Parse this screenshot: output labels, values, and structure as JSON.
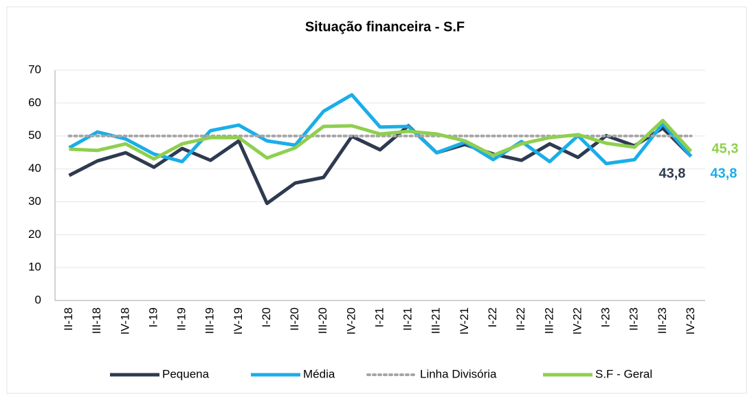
{
  "chart_data": {
    "type": "line",
    "title": "Situação financeira - S.F",
    "categories": [
      "II-18",
      "III-18",
      "IV-18",
      "I-19",
      "II-19",
      "III-19",
      "IV-19",
      "I-20",
      "II-20",
      "III-20",
      "IV-20",
      "I-21",
      "II-21",
      "III-21",
      "IV-21",
      "I-22",
      "II-22",
      "III-22",
      "IV-22",
      "I-23",
      "II-23",
      "III-23",
      "IV-23"
    ],
    "series": [
      {
        "name": "Pequena",
        "color": "#2e3a4f",
        "style": "solid",
        "values": [
          38.0,
          42.4,
          44.9,
          40.5,
          46.2,
          42.6,
          48.5,
          29.5,
          35.7,
          37.4,
          49.9,
          45.8,
          53.1,
          44.9,
          47.4,
          44.5,
          42.6,
          47.6,
          43.5,
          50.1,
          47.0,
          52.4,
          43.8
        ],
        "value_labels": [
          null,
          null,
          null,
          null,
          null,
          null,
          null,
          null,
          null,
          null,
          null,
          null,
          null,
          null,
          null,
          null,
          null,
          null,
          null,
          null,
          null,
          null,
          "43,8"
        ]
      },
      {
        "name": "Média",
        "color": "#1aaee8",
        "style": "solid",
        "values": [
          46.4,
          51.2,
          49.1,
          44.5,
          42.2,
          51.6,
          53.3,
          48.5,
          47.2,
          57.5,
          62.5,
          52.7,
          52.9,
          44.9,
          48.1,
          42.8,
          48.3,
          42.2,
          50.1,
          41.6,
          42.8,
          53.7,
          43.8
        ],
        "value_labels": [
          null,
          null,
          null,
          null,
          null,
          null,
          null,
          null,
          null,
          null,
          null,
          null,
          null,
          null,
          null,
          null,
          null,
          null,
          null,
          null,
          null,
          null,
          "43,8"
        ]
      },
      {
        "name": "Linha Divisória",
        "color": "#a6a6a6",
        "style": "dotted",
        "values": [
          50,
          50,
          50,
          50,
          50,
          50,
          50,
          50,
          50,
          50,
          50,
          50,
          50,
          50,
          50,
          50,
          50,
          50,
          50,
          50,
          50,
          50,
          50
        ]
      },
      {
        "name": "S.F - Geral",
        "color": "#8fcf4f",
        "style": "solid",
        "values": [
          46.0,
          45.6,
          47.6,
          43.0,
          47.6,
          49.5,
          49.5,
          43.3,
          46.4,
          52.9,
          53.1,
          50.6,
          51.4,
          50.6,
          48.5,
          44.1,
          47.6,
          49.5,
          50.4,
          47.8,
          46.6,
          54.7,
          45.3
        ],
        "value_labels": [
          null,
          null,
          null,
          null,
          null,
          null,
          null,
          null,
          null,
          null,
          null,
          null,
          null,
          null,
          null,
          null,
          null,
          null,
          null,
          null,
          null,
          null,
          "45,3"
        ]
      }
    ],
    "ylim": [
      0,
      70
    ],
    "yticks": [
      0,
      10,
      20,
      30,
      40,
      50,
      60,
      70
    ],
    "grid": true,
    "legend": "bottom"
  }
}
